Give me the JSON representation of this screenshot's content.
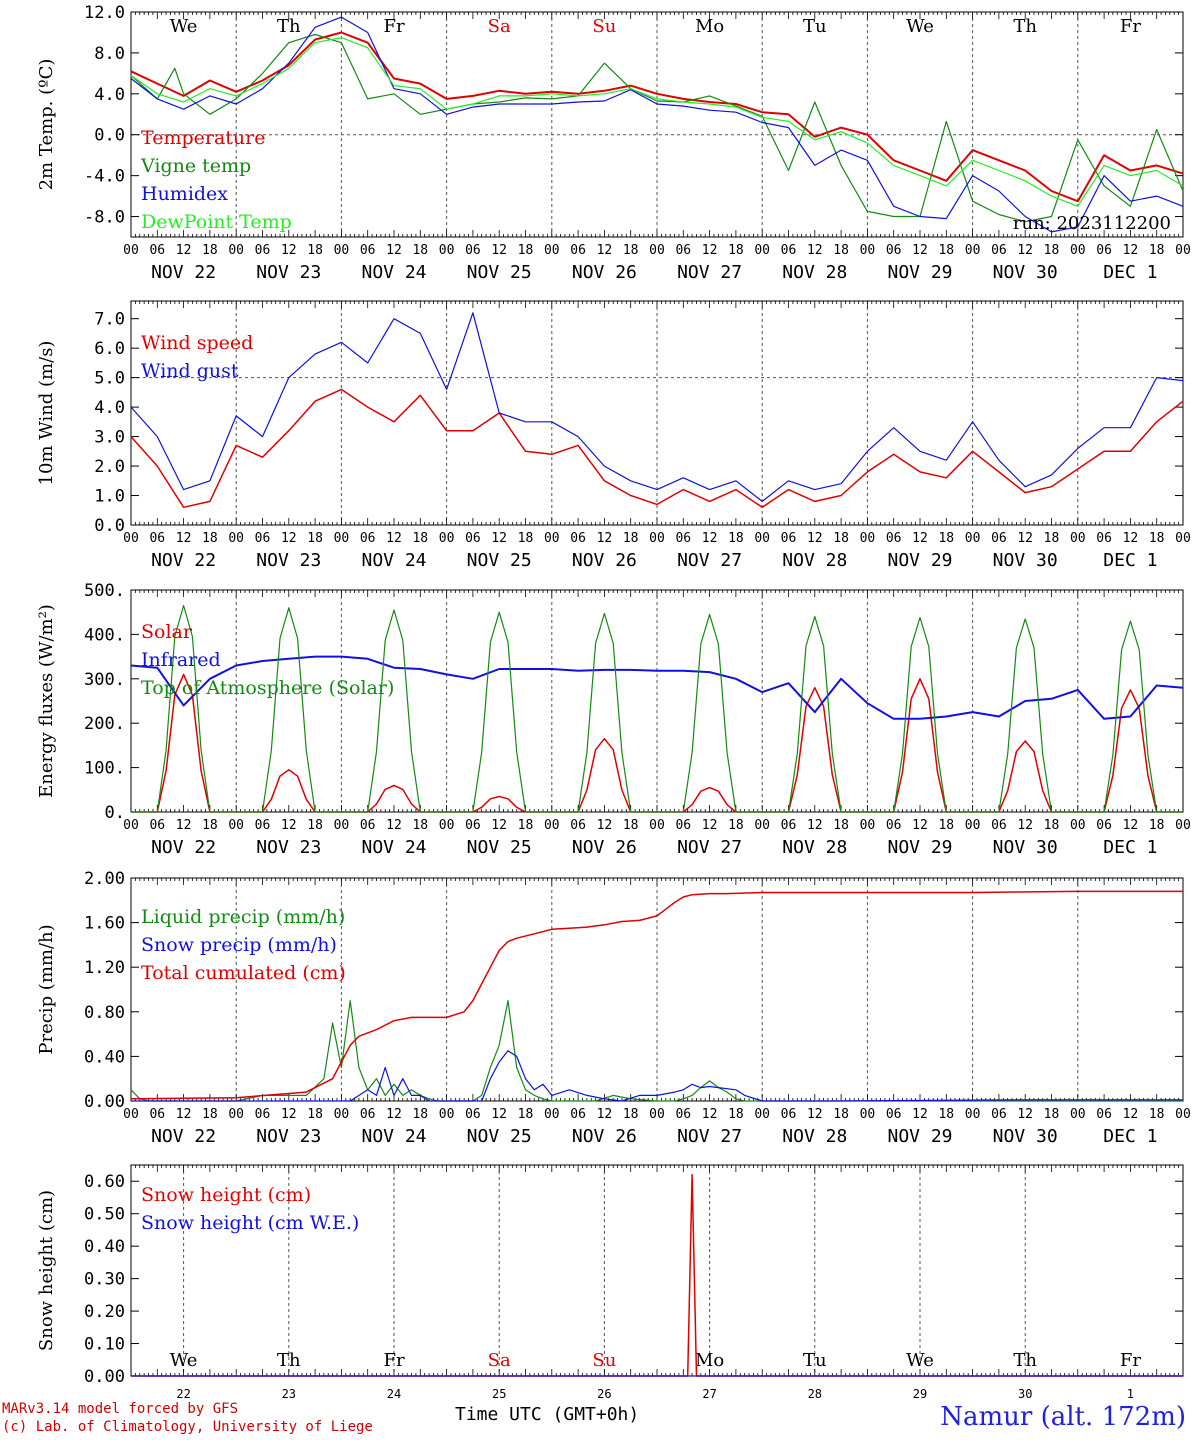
{
  "footer": {
    "model": "MARv3.14 model forced by GFS",
    "lab": "(c) Lab. of Climatology, University of Liege",
    "x_axis_title": "Time UTC (GMT+0h)",
    "station": "Namur (alt. 172m)"
  },
  "colors": {
    "red": "#e00000",
    "green": "#138a13",
    "blue": "#1010e0",
    "lightgreen": "#22ee22",
    "weekend": "#e00000"
  },
  "timeline": {
    "days": [
      "NOV 22",
      "NOV 23",
      "NOV 24",
      "NOV 25",
      "NOV 26",
      "NOV 27",
      "NOV 28",
      "NOV 29",
      "NOV 30",
      "DEC  1"
    ],
    "weekdays": [
      "We",
      "Th",
      "Fr",
      "Sa",
      "Su",
      "Mo",
      "Tu",
      "We",
      "Th",
      "Fr"
    ],
    "weekend_index": [
      3,
      4
    ],
    "hour_ticks": [
      "00",
      "06",
      "12",
      "18"
    ],
    "last_tick": "00",
    "day_numbers": [
      "22",
      "23",
      "24",
      "25",
      "26",
      "27",
      "28",
      "29",
      "30",
      "1"
    ]
  },
  "chart_data": [
    {
      "type": "line",
      "id": "temp",
      "ylabel": "2m Temp. (ºC)",
      "ylim": [
        -10,
        12
      ],
      "yticks": [
        12.0,
        8.0,
        4.0,
        0.0,
        -4.0,
        -8.0
      ],
      "ytick_labels": [
        "12.0",
        "8.0",
        "4.0",
        "0.0",
        "-4.0",
        "-8.0"
      ],
      "ref_line": 0,
      "annotation": "run: 2023112200",
      "series": [
        {
          "name": "Temperature",
          "color": "#e00000",
          "width": 2,
          "x": [
            0,
            6,
            12,
            18,
            24,
            30,
            36,
            42,
            48,
            54,
            60,
            66,
            72,
            78,
            84,
            90,
            96,
            102,
            108,
            114,
            120,
            126,
            132,
            138,
            144,
            150,
            156,
            162,
            168,
            174,
            180,
            186,
            192,
            198,
            204,
            210,
            216,
            222,
            228,
            234,
            240
          ],
          "y": [
            6.2,
            5.0,
            3.8,
            5.3,
            4.2,
            5.3,
            6.8,
            9.3,
            10.0,
            9.0,
            5.5,
            5.0,
            3.5,
            3.8,
            4.3,
            4.0,
            4.2,
            4.0,
            4.3,
            4.8,
            4.0,
            3.5,
            3.2,
            3.0,
            2.2,
            2.0,
            -0.2,
            0.7,
            0.0,
            -2.5,
            -3.5,
            -4.5,
            -1.5,
            -2.5,
            -3.5,
            -5.5,
            -6.5,
            -2.0,
            -3.5,
            -3.0,
            -3.8
          ]
        },
        {
          "name": "Vigne temp",
          "color": "#138a13",
          "width": 1.2,
          "x": [
            0,
            6,
            10,
            12,
            18,
            24,
            30,
            36,
            42,
            48,
            54,
            60,
            66,
            72,
            78,
            84,
            90,
            96,
            102,
            108,
            114,
            120,
            126,
            132,
            138,
            144,
            150,
            156,
            162,
            168,
            174,
            180,
            186,
            192,
            198,
            204,
            210,
            216,
            222,
            228,
            234,
            240
          ],
          "y": [
            5.8,
            3.5,
            6.5,
            4.0,
            2.0,
            3.5,
            6.0,
            9.0,
            9.8,
            9.0,
            3.5,
            4.0,
            2.0,
            2.5,
            3.0,
            3.2,
            3.6,
            3.5,
            3.8,
            7.0,
            4.5,
            3.3,
            3.2,
            3.8,
            2.8,
            1.8,
            -3.5,
            3.2,
            -3.0,
            -7.5,
            -8.0,
            -8.0,
            1.3,
            -6.5,
            -7.8,
            -8.5,
            -8.0,
            -0.5,
            -5.0,
            -7.0,
            0.5,
            -5.5
          ]
        },
        {
          "name": "Humidex",
          "color": "#1010e0",
          "width": 1.2,
          "x": [
            0,
            6,
            12,
            18,
            24,
            30,
            36,
            42,
            48,
            54,
            60,
            66,
            72,
            78,
            84,
            90,
            96,
            102,
            108,
            114,
            120,
            126,
            132,
            138,
            144,
            150,
            156,
            162,
            168,
            174,
            180,
            186,
            192,
            198,
            204,
            210,
            216,
            222,
            228,
            234,
            240
          ],
          "y": [
            5.5,
            3.5,
            2.5,
            3.8,
            3.0,
            4.5,
            7.0,
            10.5,
            11.5,
            10.0,
            4.5,
            4.0,
            2.0,
            2.7,
            3.0,
            3.0,
            3.0,
            3.2,
            3.3,
            4.4,
            3.0,
            2.8,
            2.4,
            2.2,
            1.2,
            0.7,
            -3.0,
            -1.5,
            -2.5,
            -7.0,
            -8.0,
            -8.2,
            -4.0,
            -5.5,
            -8.0,
            -9.5,
            -9.0,
            -4.0,
            -6.5,
            -6.0,
            -7.0
          ]
        },
        {
          "name": "DewPoint Temp",
          "color": "#22ee22",
          "width": 1.2,
          "x": [
            0,
            6,
            12,
            18,
            24,
            30,
            36,
            42,
            48,
            54,
            60,
            66,
            72,
            78,
            84,
            90,
            96,
            102,
            108,
            114,
            120,
            126,
            132,
            138,
            144,
            150,
            156,
            162,
            168,
            174,
            180,
            186,
            192,
            198,
            204,
            210,
            216,
            222,
            228,
            234,
            240
          ],
          "y": [
            5.8,
            4.0,
            3.2,
            4.5,
            3.8,
            5.0,
            6.5,
            9.0,
            9.5,
            8.5,
            4.8,
            4.5,
            2.5,
            3.0,
            3.8,
            3.8,
            4.0,
            3.8,
            4.0,
            4.5,
            3.5,
            3.2,
            3.0,
            2.7,
            1.7,
            1.3,
            -0.5,
            0.3,
            -0.8,
            -3.0,
            -4.0,
            -5.0,
            -2.5,
            -3.5,
            -4.5,
            -6.0,
            -7.0,
            -3.0,
            -4.0,
            -3.5,
            -5.0
          ]
        }
      ]
    },
    {
      "type": "line",
      "id": "wind",
      "ylabel": "10m Wind (m/s)",
      "ylim": [
        0,
        7.6
      ],
      "yticks": [
        0,
        1,
        2,
        3,
        4,
        5,
        6,
        7
      ],
      "ytick_labels": [
        "0.0",
        "1.0",
        "2.0",
        "3.0",
        "4.0",
        "5.0",
        "6.0",
        "7.0"
      ],
      "ref_line": 5,
      "series": [
        {
          "name": "Wind speed",
          "color": "#e00000",
          "width": 1.5,
          "x": [
            0,
            6,
            12,
            18,
            24,
            30,
            36,
            42,
            48,
            54,
            60,
            66,
            72,
            78,
            84,
            90,
            96,
            102,
            108,
            114,
            120,
            126,
            132,
            138,
            144,
            150,
            156,
            162,
            168,
            174,
            180,
            186,
            192,
            198,
            204,
            210,
            216,
            222,
            228,
            234,
            240
          ],
          "y": [
            3.0,
            2.0,
            0.6,
            0.8,
            2.7,
            2.3,
            3.2,
            4.2,
            4.6,
            4.0,
            3.5,
            4.4,
            3.2,
            3.2,
            3.8,
            2.5,
            2.4,
            2.7,
            1.5,
            1.0,
            0.7,
            1.2,
            0.8,
            1.2,
            0.6,
            1.2,
            0.8,
            1.0,
            1.8,
            2.4,
            1.8,
            1.6,
            2.5,
            1.8,
            1.1,
            1.3,
            1.9,
            2.5,
            2.5,
            3.5,
            4.2
          ]
        },
        {
          "name": "Wind gust",
          "color": "#1010e0",
          "width": 1.2,
          "x": [
            0,
            6,
            12,
            18,
            24,
            30,
            36,
            42,
            48,
            54,
            60,
            66,
            72,
            78,
            84,
            90,
            96,
            102,
            108,
            114,
            120,
            126,
            132,
            138,
            144,
            150,
            156,
            162,
            168,
            174,
            180,
            186,
            192,
            198,
            204,
            210,
            216,
            222,
            228,
            234,
            240
          ],
          "y": [
            4.0,
            3.0,
            1.2,
            1.5,
            3.7,
            3.0,
            5.0,
            5.8,
            6.2,
            5.5,
            7.0,
            6.5,
            4.6,
            7.2,
            3.8,
            3.5,
            3.5,
            3.0,
            2.0,
            1.5,
            1.2,
            1.6,
            1.2,
            1.5,
            0.8,
            1.5,
            1.2,
            1.4,
            2.5,
            3.3,
            2.5,
            2.2,
            3.5,
            2.2,
            1.3,
            1.7,
            2.6,
            3.3,
            3.3,
            5.0,
            4.9
          ]
        }
      ]
    },
    {
      "type": "line",
      "id": "energy",
      "ylabel": "Energy fluxes (W/m²)",
      "ylim": [
        0,
        500
      ],
      "yticks": [
        0,
        100,
        200,
        300,
        400,
        500
      ],
      "ytick_labels": [
        "0.",
        "100.",
        "200.",
        "300.",
        "400.",
        "500."
      ],
      "series": [
        {
          "name": "Solar",
          "color": "#e00000",
          "width": 1.5,
          "kind": "daily_peaks",
          "peaks": [
            310,
            95,
            60,
            35,
            165,
            55,
            280,
            300,
            160,
            275
          ]
        },
        {
          "name": "Infrared",
          "color": "#1010e0",
          "width": 2,
          "x": [
            0,
            6,
            12,
            18,
            24,
            30,
            36,
            42,
            48,
            54,
            60,
            66,
            72,
            78,
            84,
            90,
            96,
            102,
            108,
            114,
            120,
            126,
            132,
            138,
            144,
            150,
            156,
            162,
            168,
            174,
            180,
            186,
            192,
            198,
            204,
            210,
            216,
            222,
            228,
            234,
            240
          ],
          "y": [
            330,
            325,
            240,
            300,
            330,
            340,
            345,
            350,
            350,
            345,
            325,
            322,
            310,
            300,
            322,
            322,
            322,
            318,
            320,
            320,
            318,
            318,
            315,
            300,
            270,
            290,
            225,
            300,
            245,
            210,
            210,
            215,
            225,
            215,
            250,
            255,
            275,
            210,
            215,
            285,
            280
          ]
        },
        {
          "name": "Top of Atmosphere (Solar)",
          "color": "#138a13",
          "width": 1.2,
          "kind": "daily_peaks",
          "peaks": [
            465,
            460,
            455,
            450,
            447,
            445,
            440,
            438,
            435,
            430
          ]
        }
      ]
    },
    {
      "type": "line",
      "id": "precip",
      "ylabel": "Precip (mm/h)",
      "ylim": [
        0,
        2.0
      ],
      "yticks": [
        0,
        0.4,
        0.8,
        1.2,
        1.6,
        2.0
      ],
      "ytick_labels": [
        "0.00",
        "0.40",
        "0.80",
        "1.20",
        "1.60",
        "2.00"
      ],
      "series": [
        {
          "name": "Liquid precip (mm/h)",
          "color": "#138a13",
          "width": 1.2,
          "x": [
            0,
            2,
            4,
            24,
            30,
            40,
            44,
            46,
            48,
            50,
            52,
            54,
            56,
            58,
            60,
            62,
            64,
            66,
            68,
            70,
            72,
            78,
            80,
            82,
            84,
            86,
            88,
            90,
            92,
            94,
            96,
            100,
            106,
            110,
            114,
            120,
            124,
            126,
            128,
            130,
            132,
            134,
            136,
            138,
            140,
            144,
            240
          ],
          "y": [
            0.1,
            0.02,
            0,
            0,
            0.05,
            0.05,
            0.2,
            0.7,
            0.3,
            0.9,
            0.3,
            0.1,
            0.2,
            0.05,
            0.15,
            0.05,
            0.1,
            0.05,
            0.02,
            0,
            0,
            0,
            0.05,
            0.3,
            0.5,
            0.9,
            0.3,
            0.1,
            0.05,
            0.02,
            0,
            0,
            0,
            0.05,
            0.02,
            0,
            0,
            0.02,
            0.05,
            0.12,
            0.18,
            0.12,
            0.08,
            0.02,
            0,
            0,
            0
          ]
        },
        {
          "name": "Snow precip (mm/h)",
          "color": "#1010e0",
          "width": 1.2,
          "x": [
            0,
            50,
            54,
            56,
            58,
            60,
            62,
            64,
            66,
            68,
            70,
            72,
            76,
            80,
            82,
            84,
            86,
            88,
            90,
            92,
            94,
            96,
            100,
            104,
            108,
            112,
            116,
            120,
            124,
            126,
            128,
            130,
            132,
            134,
            138,
            140,
            144,
            160,
            200,
            240
          ],
          "y": [
            0,
            0,
            0.1,
            0.05,
            0.3,
            0.05,
            0.2,
            0.05,
            0.05,
            0,
            0,
            0,
            0,
            0,
            0.2,
            0.35,
            0.45,
            0.4,
            0.2,
            0.1,
            0.15,
            0.05,
            0.1,
            0.05,
            0.02,
            0,
            0.05,
            0.05,
            0.08,
            0.1,
            0.15,
            0.12,
            0.13,
            0.12,
            0.1,
            0.05,
            0,
            0,
            0.01,
            0.01
          ]
        },
        {
          "name": "Total cumulated (cm)",
          "color": "#e00000",
          "width": 1.5,
          "x": [
            0,
            24,
            40,
            46,
            48,
            50,
            52,
            56,
            60,
            64,
            72,
            76,
            78,
            80,
            82,
            84,
            86,
            88,
            92,
            96,
            100,
            104,
            108,
            112,
            116,
            120,
            122,
            124,
            126,
            128,
            132,
            136,
            144,
            168,
            192,
            216,
            240
          ],
          "y": [
            0.02,
            0.03,
            0.08,
            0.2,
            0.35,
            0.5,
            0.58,
            0.64,
            0.72,
            0.75,
            0.75,
            0.8,
            0.9,
            1.05,
            1.2,
            1.35,
            1.43,
            1.46,
            1.5,
            1.54,
            1.55,
            1.56,
            1.58,
            1.61,
            1.62,
            1.66,
            1.72,
            1.78,
            1.83,
            1.85,
            1.86,
            1.86,
            1.87,
            1.87,
            1.87,
            1.88,
            1.88
          ]
        }
      ]
    },
    {
      "type": "line",
      "id": "snow",
      "ylabel": "Snow height (cm)",
      "ylim": [
        0,
        0.65
      ],
      "yticks": [
        0,
        0.1,
        0.2,
        0.3,
        0.4,
        0.5,
        0.6
      ],
      "ytick_labels": [
        "0.00",
        "0.10",
        "0.20",
        "0.30",
        "0.40",
        "0.50",
        "0.60"
      ],
      "series": [
        {
          "name": "Snow height (cm)",
          "color": "#e00000",
          "width": 1.5,
          "x": [
            0,
            127,
            128,
            129,
            240
          ],
          "y": [
            0,
            0,
            0.62,
            0,
            0
          ]
        },
        {
          "name": "Snow height (cm W.E.)",
          "color": "#1010e0",
          "width": 1.2,
          "x": [
            0,
            240
          ],
          "y": [
            0,
            0
          ]
        }
      ]
    }
  ]
}
